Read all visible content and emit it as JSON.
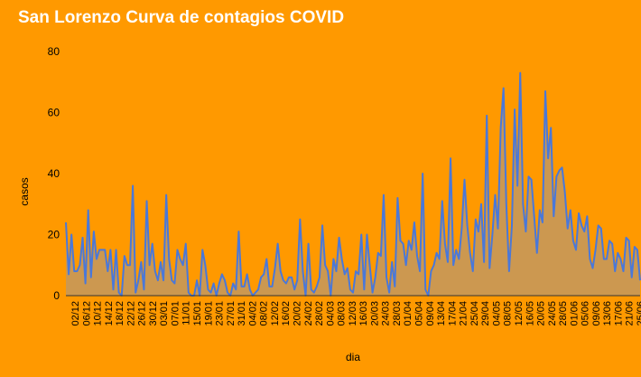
{
  "chart_data": {
    "type": "area",
    "title": "San Lorenzo Curva de contagios COVID",
    "xlabel": "dia",
    "ylabel": "casos",
    "ylim": [
      0,
      80
    ],
    "yticks": [
      0,
      20,
      40,
      60,
      80
    ],
    "grid": false,
    "legend": "none",
    "x_tick_labels": [
      "02/12",
      "06/12",
      "10/12",
      "14/12",
      "18/12",
      "22/12",
      "26/12",
      "30/12",
      "03/01",
      "07/01",
      "11/01",
      "15/01",
      "19/01",
      "23/01",
      "27/01",
      "31/01",
      "04/02",
      "08/02",
      "12/02",
      "16/02",
      "20/02",
      "24/02",
      "28/02",
      "04/03",
      "08/03",
      "12/03",
      "16/03",
      "20/03",
      "24/03",
      "28/03",
      "01/04",
      "05/04",
      "09/04",
      "13/04",
      "17/04",
      "21/04",
      "25/04",
      "29/04",
      "04/05",
      "08/05",
      "12/05",
      "16/05",
      "20/05",
      "24/05",
      "28/05",
      "01/06",
      "05/06",
      "09/06",
      "13/06",
      "17/06",
      "21/06",
      "25/06"
    ],
    "series": [
      {
        "values": [
          24,
          7,
          20,
          8,
          8,
          10,
          19,
          4,
          28,
          6,
          21,
          12,
          15,
          15,
          15,
          8,
          15,
          2,
          15,
          1,
          0,
          13,
          10,
          10,
          36,
          1,
          5,
          11,
          2,
          31,
          10,
          17,
          8,
          5,
          11,
          5,
          33,
          12,
          5,
          4,
          15,
          12,
          10,
          17,
          1,
          0,
          0,
          5,
          0,
          15,
          10,
          2,
          1,
          4,
          0,
          4,
          7,
          5,
          1,
          0,
          4,
          2,
          21,
          3,
          3,
          7,
          2,
          0,
          1,
          2,
          6,
          7,
          12,
          3,
          3,
          9,
          17,
          8,
          5,
          4,
          6,
          6,
          2,
          5,
          25,
          8,
          0,
          17,
          2,
          1,
          3,
          6,
          23,
          10,
          8,
          0,
          12,
          8,
          19,
          12,
          7,
          9,
          2,
          1,
          8,
          7,
          20,
          2,
          20,
          10,
          1,
          6,
          14,
          13,
          33,
          6,
          1,
          11,
          3,
          32,
          18,
          17,
          10,
          18,
          15,
          24,
          13,
          8,
          40,
          2,
          0,
          8,
          10,
          14,
          12,
          31,
          17,
          11,
          45,
          10,
          15,
          12,
          22,
          38,
          23,
          14,
          8,
          25,
          21,
          30,
          11,
          59,
          9,
          20,
          33,
          22,
          55,
          68,
          30,
          8,
          23,
          61,
          36,
          73,
          30,
          21,
          39,
          38,
          26,
          14,
          28,
          24,
          67,
          45,
          55,
          26,
          39,
          41,
          42,
          34,
          22,
          28,
          18,
          15,
          27,
          23,
          21,
          26,
          12,
          9,
          15,
          23,
          22,
          12,
          12,
          18,
          17,
          8,
          14,
          12,
          8,
          19,
          18,
          6,
          16,
          15,
          5
        ]
      }
    ]
  },
  "colors": {
    "background": "#ff9900",
    "line": "#4a78d9",
    "fill": "#cc9850",
    "title": "#ffffff"
  }
}
